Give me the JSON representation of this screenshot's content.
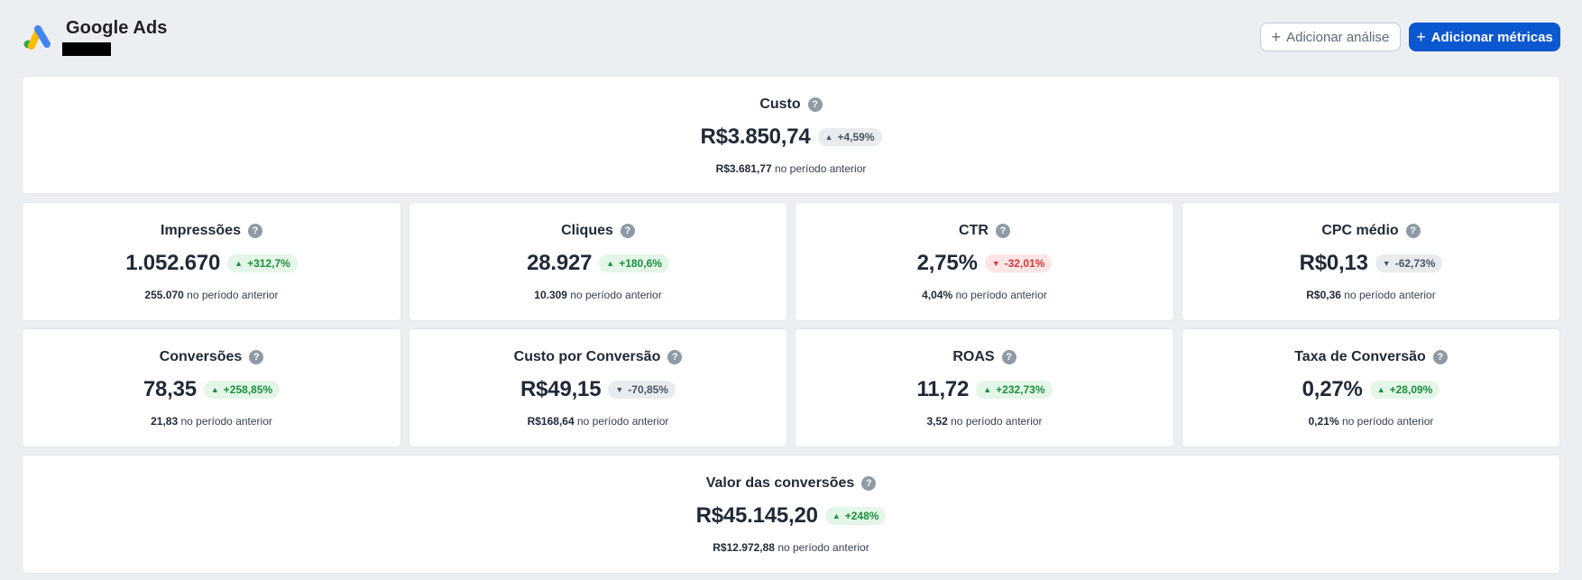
{
  "header": {
    "title": "Google Ads",
    "add_analysis_label": "Adicionar análise",
    "add_metrics_label": "Adicionar métricas"
  },
  "prev_suffix": " no período anterior",
  "metrics": {
    "custo": {
      "title": "Custo",
      "value": "R$3.850,74",
      "change": "+4,59%",
      "trend": "neutral-up",
      "prev": "R$3.681,77"
    },
    "impressoes": {
      "title": "Impressões",
      "value": "1.052.670",
      "change": "+312,7%",
      "trend": "up",
      "prev": "255.070"
    },
    "cliques": {
      "title": "Cliques",
      "value": "28.927",
      "change": "+180,6%",
      "trend": "up",
      "prev": "10.309"
    },
    "ctr": {
      "title": "CTR",
      "value": "2,75%",
      "change": "-32,01%",
      "trend": "down",
      "prev": "4,04%"
    },
    "cpc": {
      "title": "CPC médio",
      "value": "R$0,13",
      "change": "-62,73%",
      "trend": "neutral-down",
      "prev": "R$0,36"
    },
    "conversoes": {
      "title": "Conversões",
      "value": "78,35",
      "change": "+258,85%",
      "trend": "up",
      "prev": "21,83"
    },
    "custo_conversao": {
      "title": "Custo por Conversão",
      "value": "R$49,15",
      "change": "-70,85%",
      "trend": "neutral-down",
      "prev": "R$168,64"
    },
    "roas": {
      "title": "ROAS",
      "value": "11,72",
      "change": "+232,73%",
      "trend": "up",
      "prev": "3,52"
    },
    "taxa_conversao": {
      "title": "Taxa de Conversão",
      "value": "0,27%",
      "change": "+28,09%",
      "trend": "up",
      "prev": "0,21%"
    },
    "valor_conversoes": {
      "title": "Valor das conversões",
      "value": "R$45.145,20",
      "change": "+248%",
      "trend": "up",
      "prev": "R$12.972,88"
    }
  },
  "colors": {
    "primary": "#0b57d0",
    "up": "#1e8e3e",
    "down": "#d33a3a",
    "background": "#eceff1"
  },
  "icons": {
    "logo": "google-ads-logo",
    "help": "help-circle-icon",
    "plus": "plus-icon",
    "up": "triangle-up-icon",
    "down": "triangle-down-icon"
  }
}
